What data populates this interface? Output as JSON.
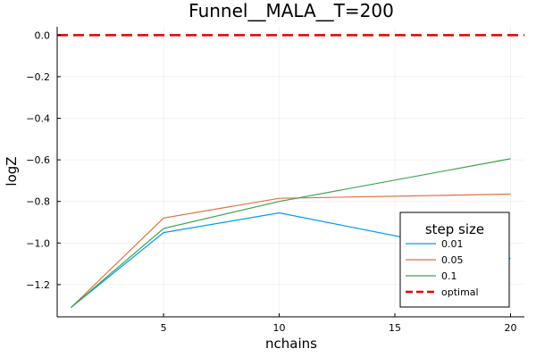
{
  "chart_data": {
    "type": "line",
    "title": "Funnel__MALA__T=200",
    "xlabel": "nchains",
    "ylabel": "logZ",
    "x": [
      1,
      5,
      10,
      20
    ],
    "xlim": [
      0.4,
      20.6
    ],
    "ylim": [
      -1.355,
      0.04
    ],
    "xticks": [
      5,
      10,
      15,
      20
    ],
    "xtick_labels": [
      "5",
      "10",
      "15",
      "20"
    ],
    "yticks": [
      0.0,
      -0.2,
      -0.4,
      -0.6,
      -0.8,
      -1.0,
      -1.2
    ],
    "ytick_labels": [
      "0.0",
      "−0.2",
      "−0.4",
      "−0.6",
      "−0.8",
      "−1.0",
      "−1.2"
    ],
    "grid": true,
    "legend_title": "step size",
    "legend_position": "bottom-right",
    "series": [
      {
        "name": "0.01",
        "color": "#009AFA",
        "values": [
          -1.31,
          -0.95,
          -0.855,
          -1.075
        ]
      },
      {
        "name": "0.05",
        "color": "#E26F46",
        "values": [
          -1.31,
          -0.88,
          -0.785,
          -0.765
        ]
      },
      {
        "name": "0.1",
        "color": "#3EA44E",
        "values": [
          -1.31,
          -0.93,
          -0.8,
          -0.595
        ]
      }
    ],
    "reference_line": {
      "name": "optimal",
      "color": "#E50000",
      "value": 0.0,
      "style": "dashed"
    }
  }
}
